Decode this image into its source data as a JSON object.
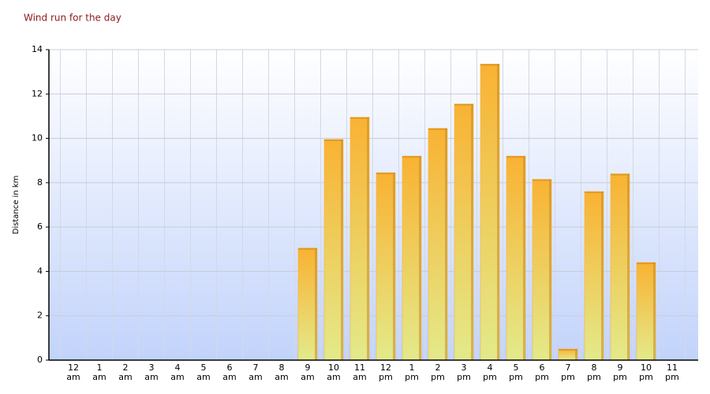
{
  "chart_data": {
    "type": "bar",
    "title": "Wind run for the day",
    "y_label": "Distance in km",
    "categories": [
      "12\nam",
      "1\nam",
      "2\nam",
      "3\nam",
      "4\nam",
      "5\nam",
      "6\nam",
      "7\nam",
      "8\nam",
      "9\nam",
      "10\nam",
      "11\nam",
      "12\npm",
      "1\npm",
      "2\npm",
      "3\npm",
      "4\npm",
      "5\npm",
      "6\npm",
      "7\npm",
      "8\npm",
      "9\npm",
      "10\npm",
      "11\npm"
    ],
    "values": [
      0,
      0,
      0,
      0,
      0,
      0,
      0,
      0,
      0,
      5.05,
      9.95,
      10.95,
      8.45,
      9.2,
      10.45,
      11.55,
      13.35,
      9.2,
      8.15,
      0.5,
      7.6,
      8.4,
      4.4,
      0
    ],
    "color": "#f6b43a",
    "ylim": [
      0,
      14
    ],
    "yticks": [
      0,
      2,
      4,
      6,
      8,
      10,
      12,
      14
    ],
    "grid": true
  }
}
